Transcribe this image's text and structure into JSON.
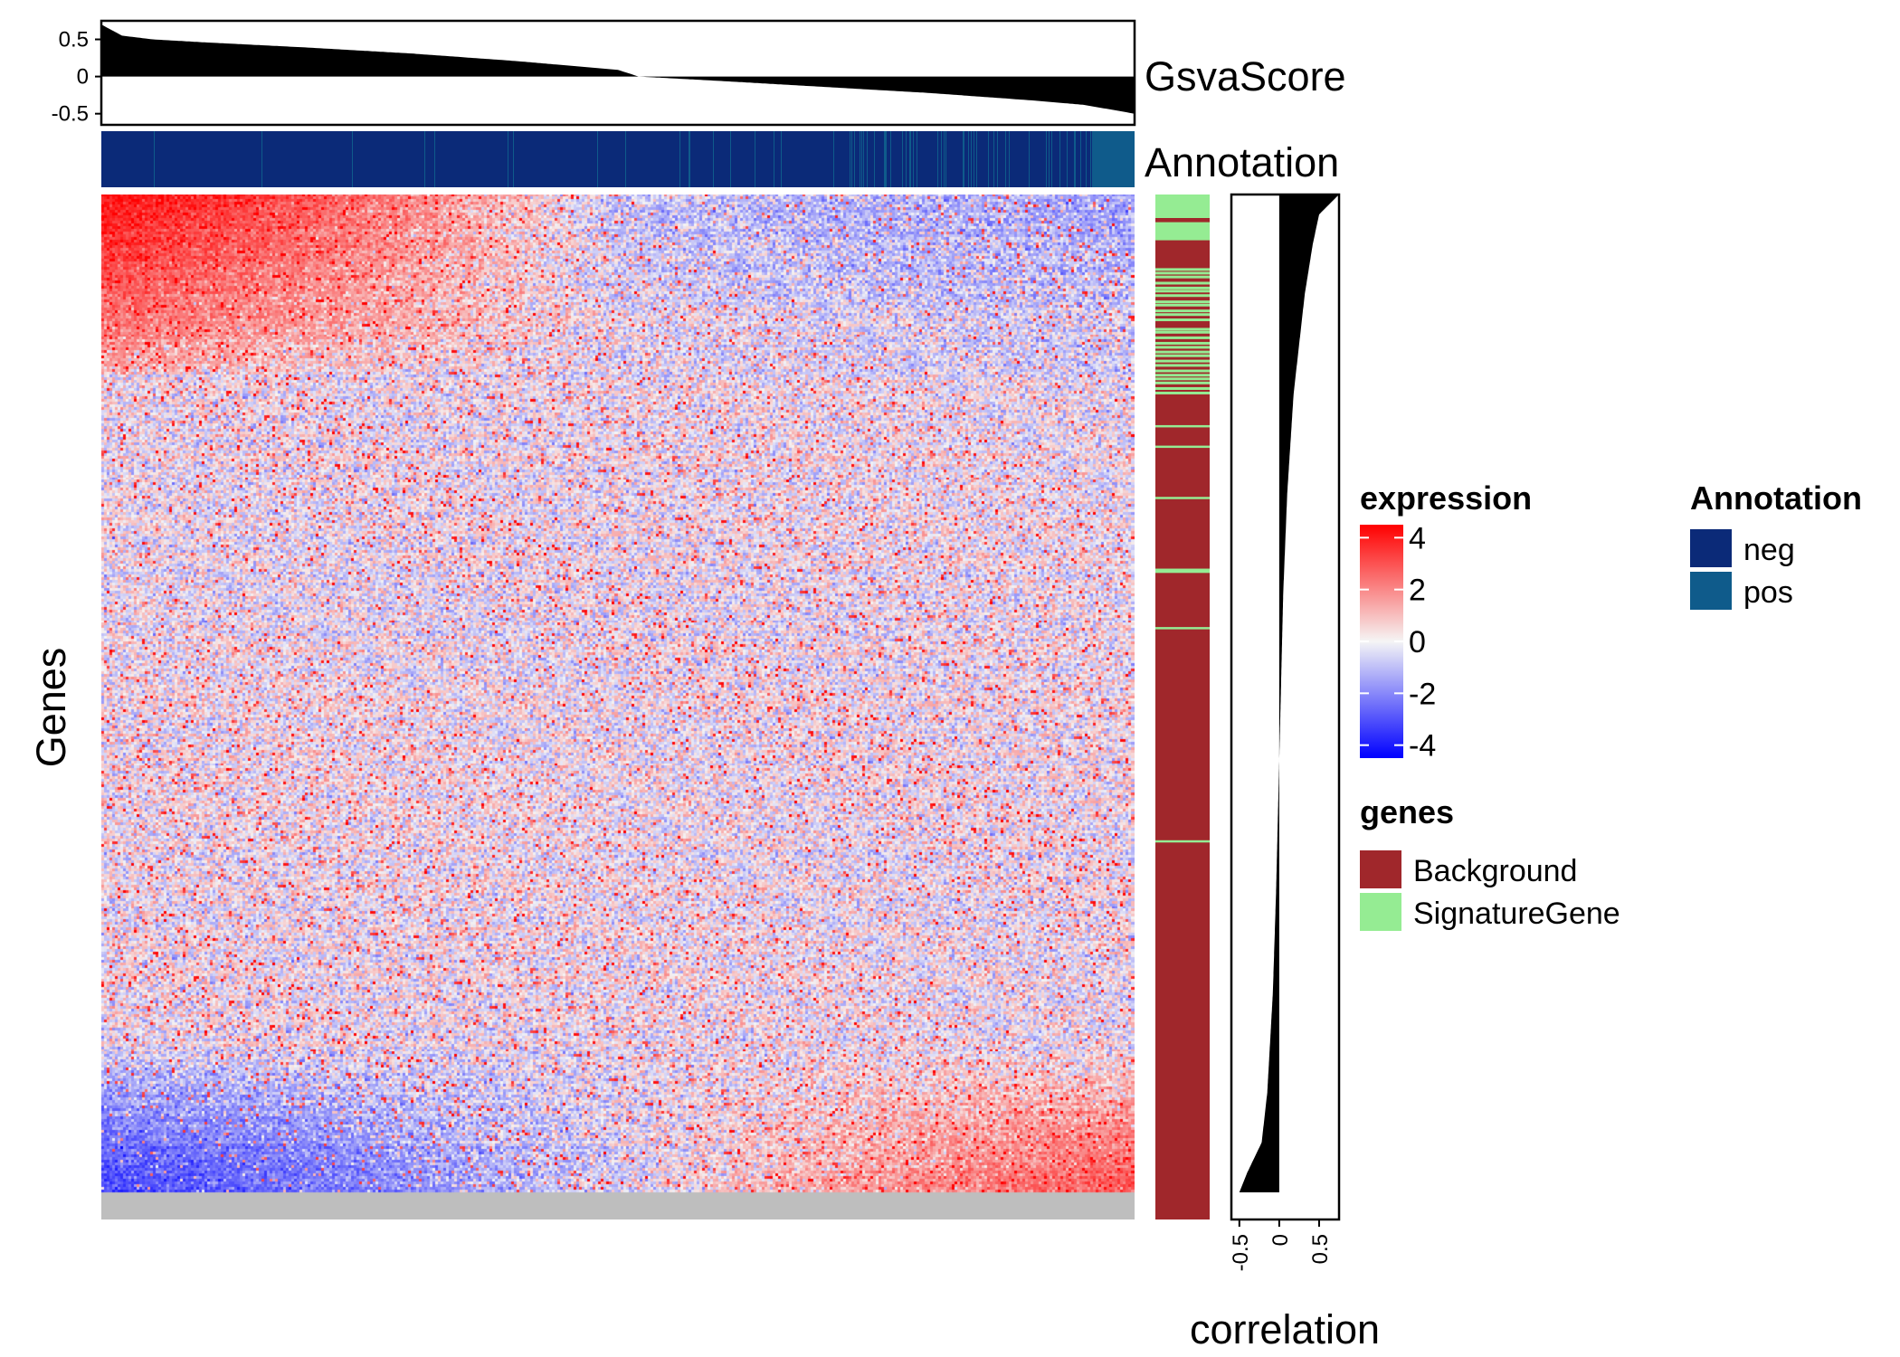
{
  "chart_data": [
    {
      "type": "heatmap",
      "ylabel": "Genes",
      "grid": false,
      "legend": {
        "title": "expression",
        "ticks": [
          "4",
          "2",
          "0",
          "-2",
          "-4"
        ],
        "values": [
          4,
          2,
          0,
          -2,
          -4
        ],
        "range": [
          -4.5,
          4.5
        ],
        "colors": {
          "low": "#0000ff",
          "mid": "#f5f5f5",
          "high": "#ff0000"
        },
        "placement": "right"
      },
      "pattern": "rows sorted by correlation with GsvaScore; columns sorted by GsvaScore descending; top rows high (red) for left samples, bottom rows high for right samples",
      "na_color": "#bebebe"
    },
    {
      "type": "area",
      "panel": "top",
      "label": "GsvaScore",
      "ylim": [
        -0.65,
        0.75
      ],
      "yticks": [
        "0.5",
        "0",
        "-0.5"
      ],
      "ytick_values": [
        0.5,
        0,
        -0.5
      ],
      "series": [
        {
          "x": [
            0,
            0.02,
            0.05,
            0.1,
            0.2,
            0.3,
            0.4,
            0.5,
            0.52,
            0.6,
            0.7,
            0.8,
            0.9,
            0.95,
            0.98,
            1.0
          ],
          "y": [
            0.7,
            0.55,
            0.5,
            0.46,
            0.39,
            0.31,
            0.21,
            0.09,
            0.0,
            -0.06,
            -0.14,
            -0.22,
            -0.32,
            -0.38,
            -0.45,
            -0.5
          ]
        }
      ]
    },
    {
      "type": "bar",
      "panel": "top-annotation",
      "label": "Annotation",
      "legend": {
        "title": "Annotation",
        "entries": [
          {
            "name": "neg",
            "color": "#0b2a78"
          },
          {
            "name": "pos",
            "color": "#0f5b8b"
          }
        ],
        "placement": "right"
      }
    },
    {
      "type": "bar",
      "panel": "row-annotation",
      "legend": {
        "title": "genes",
        "entries": [
          {
            "name": "Background",
            "color": "#a0272b"
          },
          {
            "name": "SignatureGene",
            "color": "#95ec93"
          }
        ],
        "placement": "right"
      }
    },
    {
      "type": "area",
      "panel": "right",
      "xlabel": "correlation",
      "xlim": [
        -0.6,
        0.75
      ],
      "xticks": [
        "-0.5",
        "0",
        "0.5"
      ],
      "xtick_values": [
        -0.5,
        0,
        0.5
      ],
      "series": [
        {
          "rank": [
            0,
            0.02,
            0.05,
            0.1,
            0.2,
            0.3,
            0.4,
            0.5,
            0.6,
            0.7,
            0.8,
            0.9,
            0.95,
            0.98,
            1.0
          ],
          "x": [
            0.75,
            0.5,
            0.42,
            0.32,
            0.18,
            0.1,
            0.05,
            0.02,
            -0.01,
            -0.04,
            -0.08,
            -0.15,
            -0.22,
            -0.4,
            -0.5
          ]
        }
      ]
    }
  ]
}
